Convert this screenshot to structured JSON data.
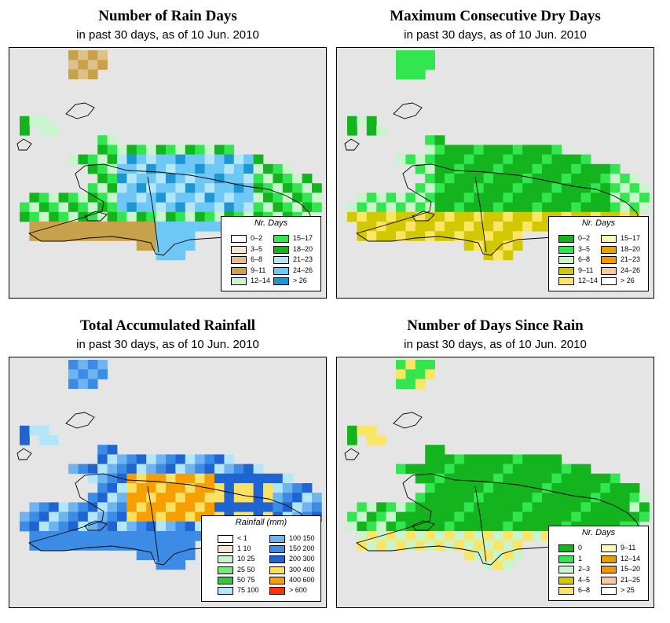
{
  "panels": [
    {
      "key": "p1",
      "title": "Number of Rain Days",
      "subtitle": "in past 30 days, as of  10 Jun. 2010",
      "legend": {
        "title": "Nr. Days",
        "items": [
          {
            "label": "0–2",
            "color": "#ffffff"
          },
          {
            "label": "3–5",
            "color": "#f5e6cc"
          },
          {
            "label": "6–8",
            "color": "#dfc08a"
          },
          {
            "label": "9–11",
            "color": "#c8a24a"
          },
          {
            "label": "12–14",
            "color": "#c8f5cc"
          },
          {
            "label": "15–17",
            "color": "#32e650"
          },
          {
            "label": "18–20",
            "color": "#14b41e"
          },
          {
            "label": "21–23",
            "color": "#b4e6fa"
          },
          {
            "label": "24–26",
            "color": "#6ec8f5"
          },
          {
            "label": "> 26",
            "color": "#1e96d2"
          }
        ]
      }
    },
    {
      "key": "p2",
      "title": "Maximum Consecutive Dry Days",
      "subtitle": "in past 30 days, as of  10 Jun. 2010",
      "legend": {
        "title": "Nr. Days",
        "items": [
          {
            "label": "0–2",
            "color": "#14b41e"
          },
          {
            "label": "3–5",
            "color": "#32e650"
          },
          {
            "label": "6–8",
            "color": "#c8f5cc"
          },
          {
            "label": "9–11",
            "color": "#d2c800"
          },
          {
            "label": "12–14",
            "color": "#fae664"
          },
          {
            "label": "15–17",
            "color": "#fff5b4"
          },
          {
            "label": "18–20",
            "color": "#e6a000"
          },
          {
            "label": "21–23",
            "color": "#f59600"
          },
          {
            "label": "24–26",
            "color": "#fac8a0"
          },
          {
            "label": "> 26",
            "color": "#ffffff"
          }
        ]
      }
    },
    {
      "key": "p3",
      "title": "Total Accumulated Rainfall",
      "subtitle": "in past 30 days, as of  10 Jun. 2010",
      "legend": {
        "title": "Rainfall (mm)",
        "items": [
          {
            "label": "< 1",
            "color": "#ffffff"
          },
          {
            "label": "1    10",
            "color": "#f5e6cc"
          },
          {
            "label": "10    25",
            "color": "#c8f5cc"
          },
          {
            "label": "25    50",
            "color": "#78e678"
          },
          {
            "label": "50    75",
            "color": "#32c83c"
          },
          {
            "label": "75   100",
            "color": "#b4e6fa"
          },
          {
            "label": "100   150",
            "color": "#6eb4f0"
          },
          {
            "label": "150   200",
            "color": "#3c8ce6"
          },
          {
            "label": "200   300",
            "color": "#1e64d2"
          },
          {
            "label": "300   400",
            "color": "#fae164"
          },
          {
            "label": "400   600",
            "color": "#f5a000"
          },
          {
            "label": "> 600",
            "color": "#ff3200"
          }
        ]
      }
    },
    {
      "key": "p4",
      "title": "Number of Days Since Rain",
      "subtitle": "in past 30 days, as of  10 Jun. 2010",
      "legend": {
        "title": "Nr. Days",
        "items": [
          {
            "label": "0",
            "color": "#14b41e"
          },
          {
            "label": "1",
            "color": "#32e650"
          },
          {
            "label": "2–3",
            "color": "#c8f5cc"
          },
          {
            "label": "4–5",
            "color": "#d2c800"
          },
          {
            "label": "6–8",
            "color": "#fae664"
          },
          {
            "label": "9–11",
            "color": "#fff5b4"
          },
          {
            "label": "12–14",
            "color": "#e6a000"
          },
          {
            "label": "15–20",
            "color": "#f59600"
          },
          {
            "label": "21–25",
            "color": "#fac8a0"
          },
          {
            "label": "> 25",
            "color": "#ffffff"
          }
        ]
      }
    }
  ],
  "colors": {
    "map_background": "#e5e5e5",
    "coastline": "#000000"
  }
}
